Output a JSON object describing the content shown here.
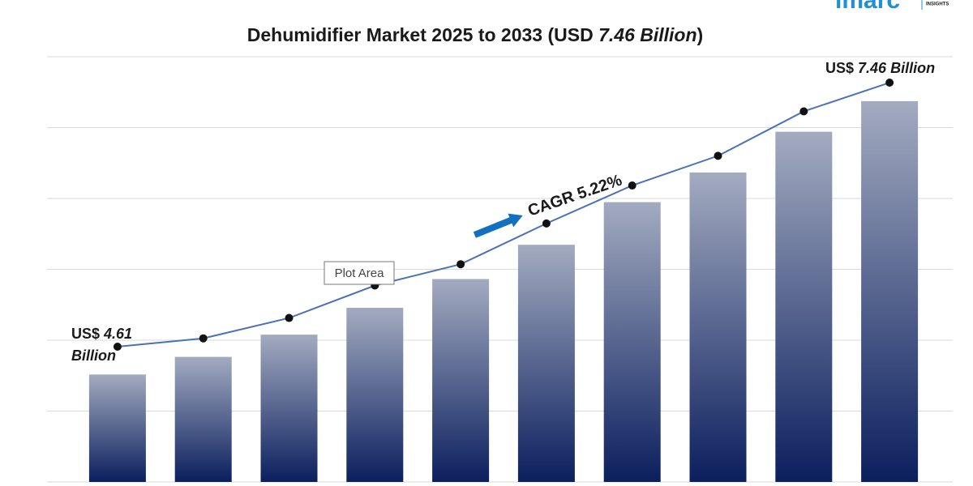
{
  "chart_data": {
    "type": "bar",
    "title": [
      "Dehumidifier Market 2025 to 2033 (USD ",
      "7.46 Billion",
      ")"
    ],
    "categories": [
      null,
      null,
      null,
      null,
      null,
      null,
      null,
      null,
      null,
      null
    ],
    "series": [
      {
        "type": "bar",
        "color": "#0b1f5e",
        "values": [
          4.31,
          4.5,
          4.74,
          5.03,
          5.34,
          5.71,
          6.17,
          6.49,
          6.93,
          7.26
        ]
      },
      {
        "type": "line",
        "color": "#4a72b8",
        "values": [
          4.61,
          4.7,
          4.92,
          5.27,
          5.5,
          5.94,
          6.35,
          6.67,
          7.15,
          7.46
        ]
      }
    ],
    "ylim": [
      3.15,
      7.74
    ],
    "grid": true,
    "annotations": {
      "start_label": [
        "US$ ",
        "4.61",
        "Billion"
      ],
      "end_label": [
        "US$ ",
        "7.46 Billion"
      ],
      "cagr": "CAGR 5.22%",
      "tooltip": "Plot Area"
    },
    "logo": {
      "brand": "imarc",
      "tagline": "INSIGHTS"
    }
  }
}
